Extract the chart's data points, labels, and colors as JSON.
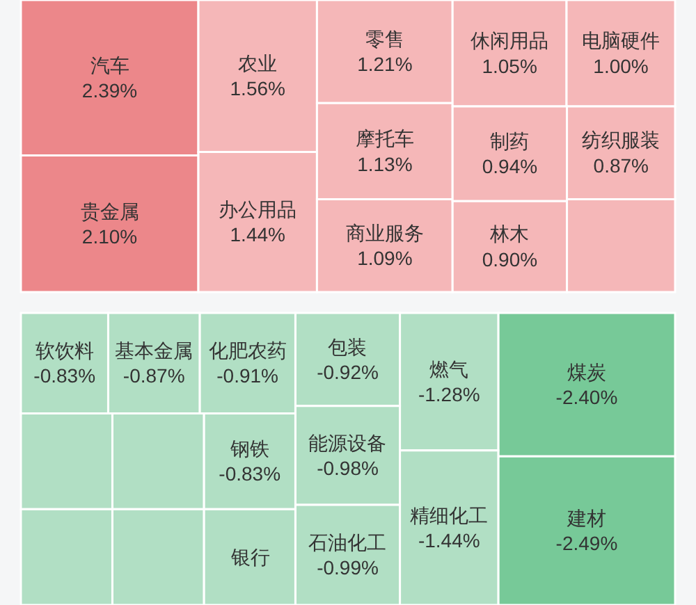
{
  "chart_data": [
    {
      "type": "other",
      "categories": [
        "汽车",
        "贵金属",
        "农业",
        "办公用品",
        "零售",
        "摩托车",
        "商业服务",
        "休闲用品",
        "电脑硬件",
        "制药",
        "林木",
        "纺织服装",
        null
      ],
      "values": [
        2.39,
        2.1,
        1.56,
        1.44,
        1.21,
        1.13,
        1.09,
        1.05,
        1.0,
        0.94,
        0.9,
        0.87,
        null
      ],
      "value_labels": [
        "2.39%",
        "2.10%",
        "1.56%",
        "1.44%",
        "1.21%",
        "1.13%",
        "1.09%",
        "1.05%",
        "1.00%",
        "0.94%",
        "0.90%",
        "0.87%",
        null
      ],
      "colors": [
        "#ec878a",
        "#ec878a",
        "#f5b7b8",
        "#f5b7b8",
        "#f5b7b8",
        "#f5b7b8",
        "#f5b7b8",
        "#f5b7b8",
        "#f5b7b8",
        "#f5b7b8",
        "#f5b7b8",
        "#f5b7b8",
        "#f5b7b8"
      ]
    },
    {
      "type": "other",
      "categories": [
        "煤炭",
        "建材",
        "燃气",
        "精细化工",
        "包装",
        "能源设备",
        "石油化工",
        "化肥农药",
        "基本金属",
        "软饮料",
        "钢铁",
        "银行",
        null,
        null,
        null,
        null
      ],
      "values": [
        -2.4,
        -2.49,
        -1.28,
        -1.44,
        -0.92,
        -0.98,
        -0.99,
        -0.91,
        -0.87,
        -0.83,
        -0.83,
        null,
        null,
        null,
        null,
        null
      ],
      "value_labels": [
        "-2.40%",
        "-2.49%",
        "-1.28%",
        "-1.44%",
        "-0.92%",
        "-0.98%",
        "-0.99%",
        "-0.91%",
        "-0.87%",
        "-0.83%",
        "-0.83%",
        null,
        null,
        null,
        null,
        null
      ],
      "colors": [
        "#77c998",
        "#77c998",
        "#b1dfc4",
        "#b1dfc4",
        "#b1dfc4",
        "#b1dfc4",
        "#b1dfc4",
        "#b1dfc4",
        "#b1dfc4",
        "#b1dfc4",
        "#b1dfc4",
        "#b1dfc4",
        "#b1dfc4",
        "#b1dfc4",
        "#b1dfc4",
        "#b1dfc4"
      ]
    }
  ]
}
